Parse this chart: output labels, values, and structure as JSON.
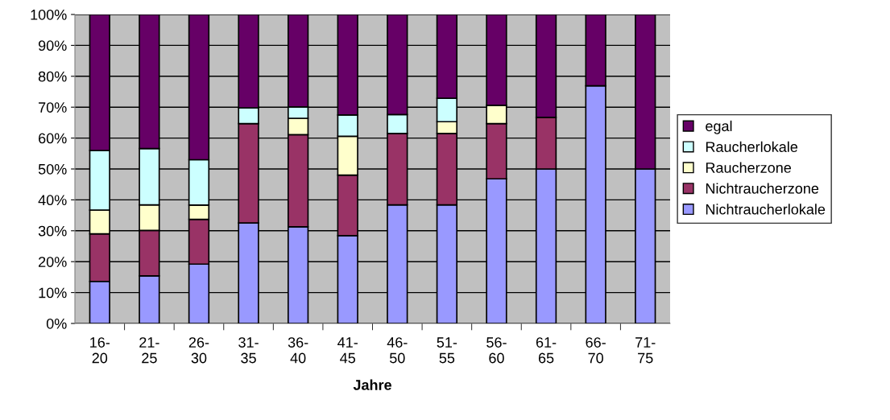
{
  "chart_data": {
    "type": "bar",
    "stacked": true,
    "xlabel": "Jahre",
    "categories": [
      "16-\n20",
      "21-\n25",
      "26-\n30",
      "31-\n35",
      "36-\n40",
      "41-\n45",
      "46-\n50",
      "51-\n55",
      "56-\n60",
      "61-\n65",
      "66-\n70",
      "71-\n75"
    ],
    "series": [
      {
        "name": "Nichtraucherlokale",
        "color": "#9999ff",
        "values": [
          13.6,
          15.4,
          19.2,
          32.5,
          31.3,
          28.4,
          38.4,
          38.4,
          46.8,
          50,
          76.9,
          50
        ]
      },
      {
        "name": "Nichtraucherzone",
        "color": "#993366",
        "values": [
          15.4,
          14.7,
          14.5,
          32.2,
          29.8,
          19.6,
          23.1,
          23.1,
          17.9,
          16.7,
          null,
          null
        ]
      },
      {
        "name": "Raucherzone",
        "color": "#ffffcc",
        "values": [
          7.7,
          8.3,
          4.6,
          null,
          5.3,
          12.6,
          null,
          3.8,
          5.9,
          null,
          null,
          null
        ]
      },
      {
        "name": "Raucherlokale",
        "color": "#ccffff",
        "values": [
          19.3,
          18.2,
          14.7,
          5.1,
          3.7,
          6.9,
          6.1,
          7.6,
          null,
          null,
          null,
          null
        ]
      },
      {
        "name": "egal",
        "color": "#660066",
        "values": [
          44,
          43.4,
          47,
          30.2,
          29.9,
          32.5,
          32.4,
          27.1,
          29.4,
          33.3,
          23.1,
          50
        ]
      }
    ],
    "ylim": [
      0,
      100
    ],
    "yticks": [
      {
        "value": 0,
        "label": "0%"
      },
      {
        "value": 10,
        "label": "10%"
      },
      {
        "value": 20,
        "label": "20%"
      },
      {
        "value": 30,
        "label": "30%"
      },
      {
        "value": 40,
        "label": "40%"
      },
      {
        "value": 50,
        "label": "50%"
      },
      {
        "value": 60,
        "label": "60%"
      },
      {
        "value": 70,
        "label": "70%"
      },
      {
        "value": 80,
        "label": "80%"
      },
      {
        "value": 90,
        "label": "90%"
      },
      {
        "value": 100,
        "label": "100%"
      }
    ],
    "grid": "y",
    "legend": "right"
  }
}
